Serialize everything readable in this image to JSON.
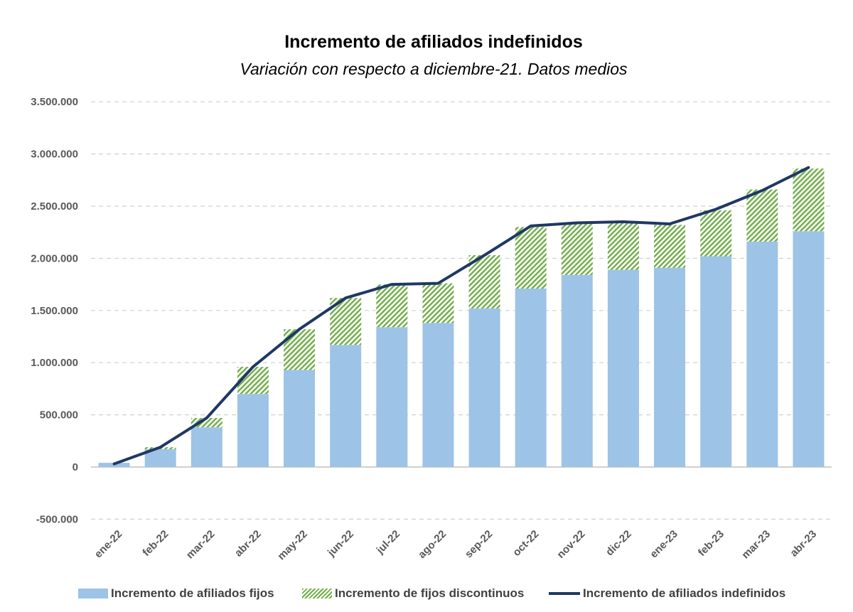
{
  "chart_data": {
    "type": "bar",
    "title": "Incremento de afiliados indefinidos",
    "subtitle": "Variación con respecto a diciembre-21. Datos medios",
    "categories": [
      "ene-22",
      "feb-22",
      "mar-22",
      "abr-22",
      "may-22",
      "jun-22",
      "jul-22",
      "ago-22",
      "sep-22",
      "oct-22",
      "nov-22",
      "dic-22",
      "ene-23",
      "feb-23",
      "mar-23",
      "abr-23"
    ],
    "ylim": [
      -500000,
      3500000
    ],
    "yticks": [
      -500000,
      0,
      500000,
      1000000,
      1500000,
      2000000,
      2500000,
      3000000,
      3500000
    ],
    "ytick_labels": [
      "-500.000",
      "0",
      "500.000",
      "1.000.000",
      "1.500.000",
      "2.000.000",
      "2.500.000",
      "3.000.000",
      "3.500.000"
    ],
    "grid": true,
    "legend_position": "bottom",
    "series": [
      {
        "name": "Incremento de afiliados fijos",
        "type": "bar",
        "color": "#9dc3e6",
        "values": [
          40000,
          170000,
          380000,
          700000,
          930000,
          1170000,
          1340000,
          1380000,
          1520000,
          1710000,
          1840000,
          1890000,
          1910000,
          2020000,
          2160000,
          2260000
        ]
      },
      {
        "name": "Incremento de fijos discontinuos",
        "type": "bar",
        "color": "#70ad47",
        "values": [
          0,
          20000,
          90000,
          260000,
          390000,
          450000,
          410000,
          380000,
          510000,
          590000,
          490000,
          450000,
          410000,
          440000,
          500000,
          600000
        ]
      },
      {
        "name": "Incremento de afiliados indefinidos",
        "type": "line",
        "color": "#1f3864",
        "values": [
          30000,
          190000,
          470000,
          960000,
          1320000,
          1620000,
          1750000,
          1760000,
          2030000,
          2310000,
          2340000,
          2350000,
          2330000,
          2470000,
          2650000,
          2870000
        ]
      }
    ]
  }
}
